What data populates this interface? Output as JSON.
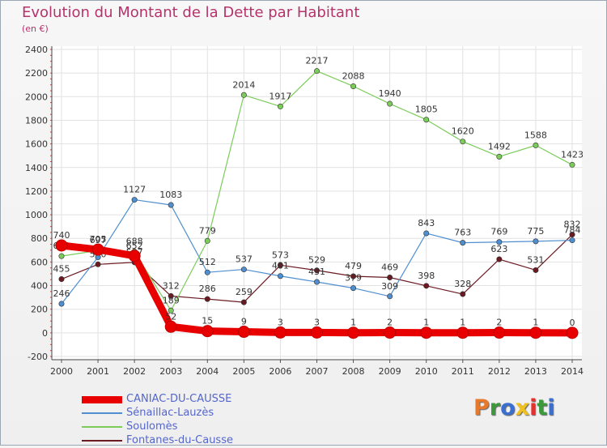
{
  "header": {
    "title": "Evolution du Montant de la Dette par Habitant",
    "unit": "(en €)"
  },
  "logo": {
    "text": "Proxiti",
    "colors": [
      "#e8792a",
      "#3c9a3c",
      "#3a6fd0",
      "#f0c020",
      "#e83030",
      "#3c9a3c",
      "#3a6fd0"
    ]
  },
  "chart_data": {
    "type": "line",
    "title": "Evolution du Montant de la Dette par Habitant",
    "subtitle": "(en €)",
    "xlabel": "",
    "ylabel": "",
    "ylim": [
      -200,
      2400
    ],
    "yticks": [
      -200,
      0,
      200,
      400,
      600,
      800,
      1000,
      1200,
      1400,
      1600,
      1800,
      2000,
      2200,
      2400
    ],
    "grid": true,
    "legend_position": "bottom-left",
    "x": [
      "2000",
      "2001",
      "2002",
      "2003",
      "2004",
      "2005",
      "2006",
      "2007",
      "2008",
      "2009",
      "2010",
      "2011",
      "2012",
      "2013",
      "2014"
    ],
    "series": [
      {
        "name": "Fontanes-du-Causse",
        "color": "#6b1a22",
        "width": 1.2,
        "values": [
          455,
          580,
          597,
          312,
          286,
          259,
          573,
          529,
          479,
          469,
          398,
          328,
          623,
          531,
          832
        ],
        "labels": [
          "455",
          "580",
          "597",
          "312",
          "286",
          "259",
          "573",
          "529",
          "479",
          "469",
          "398",
          "328",
          "623",
          "531",
          "832"
        ]
      },
      {
        "name": "Sénaillac-Lauzès",
        "color": "#4f8fd0",
        "width": 1.2,
        "values": [
          246,
          640,
          1127,
          1083,
          512,
          537,
          481,
          431,
          379,
          309,
          843,
          763,
          769,
          775,
          784
        ],
        "labels": [
          "246",
          "",
          "1127",
          "1083",
          "512",
          "537",
          "481",
          "431",
          "379",
          "309",
          "843",
          "763",
          "769",
          "775",
          "784"
        ]
      },
      {
        "name": "Soulomès",
        "color": "#7ccc5a",
        "width": 1.2,
        "values": [
          650,
          697,
          688,
          189,
          779,
          2014,
          1917,
          2217,
          2088,
          1940,
          1805,
          1620,
          1492,
          1588,
          1423
        ],
        "labels": [
          "650",
          "697",
          "688",
          "189",
          "779",
          "2014",
          "1917",
          "2217",
          "2088",
          "1940",
          "1805",
          "1620",
          "1492",
          "1588",
          "1423"
        ]
      },
      {
        "name": "CANIAC-DU-CAUSSE",
        "color": "#e80000",
        "width": 9,
        "values": [
          740,
          705,
          652,
          52,
          15,
          9,
          3,
          3,
          1,
          2,
          1,
          1,
          2,
          1,
          0
        ],
        "labels": [
          "740",
          "705",
          "652",
          "52",
          "15",
          "9",
          "3",
          "3",
          "1",
          "2",
          "1",
          "1",
          "2",
          "1",
          "0"
        ]
      }
    ],
    "legend_order": [
      "CANIAC-DU-CAUSSE",
      "Sénaillac-Lauzès",
      "Soulomès",
      "Fontanes-du-Causse"
    ]
  }
}
